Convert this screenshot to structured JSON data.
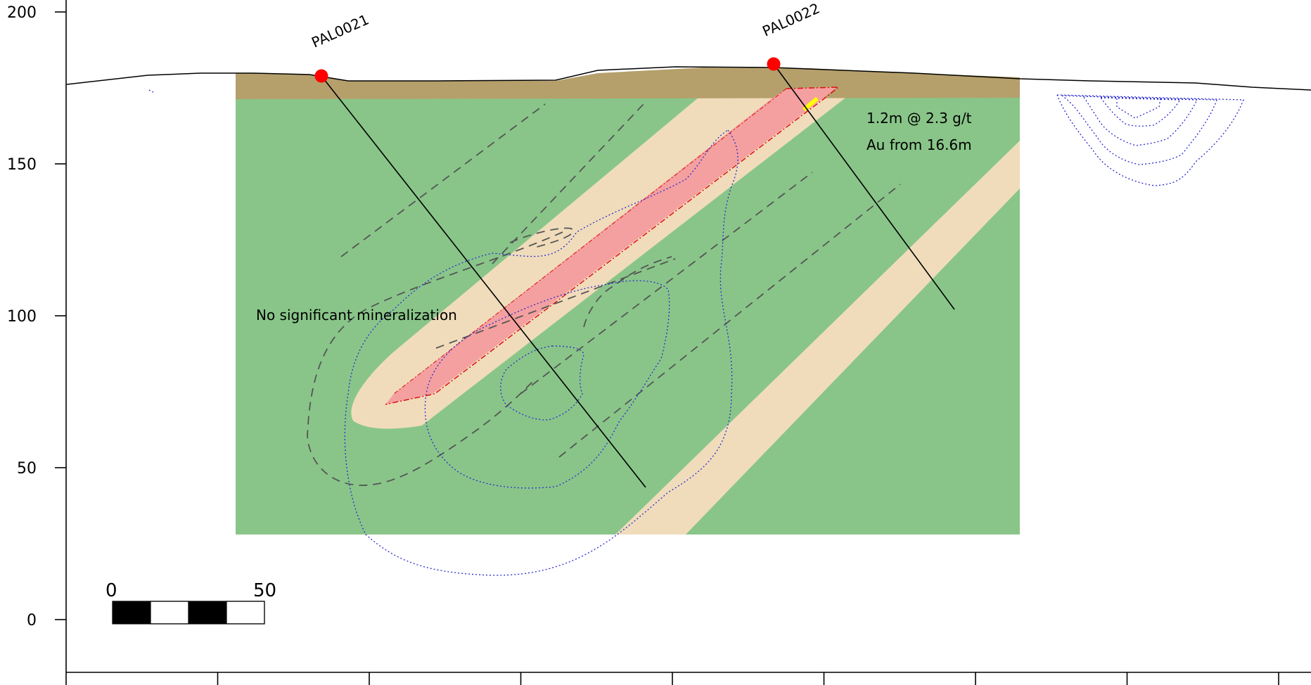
{
  "y_axis": {
    "ticks": [
      {
        "value": 200,
        "label": "200"
      },
      {
        "value": 150,
        "label": "150"
      },
      {
        "value": 100,
        "label": "100"
      },
      {
        "value": 50,
        "label": "50"
      },
      {
        "value": 0,
        "label": "0"
      }
    ]
  },
  "x_axis": {
    "tick_count": 9
  },
  "drill_holes": [
    {
      "label": "PAL0021"
    },
    {
      "label": "PAL0022"
    }
  ],
  "annotations": {
    "no_mineralization": "No significant mineralization",
    "intercept_line1": "1.2m @ 2.3 g/t",
    "intercept_line2": "Au from 16.6m"
  },
  "scale_bar": {
    "start_label": "0",
    "end_label": "50"
  },
  "colors": {
    "host_rock": "#89c589",
    "overburden": "#b5a06c",
    "altered_unit": "#f0dcbb",
    "ore_zone": "#f4a0a0",
    "ore_outline": "#e01010",
    "contour": "#2a2ad0",
    "fault_dashed": "#555555",
    "collar": "#ff0000",
    "intercept": "#ffff00"
  }
}
